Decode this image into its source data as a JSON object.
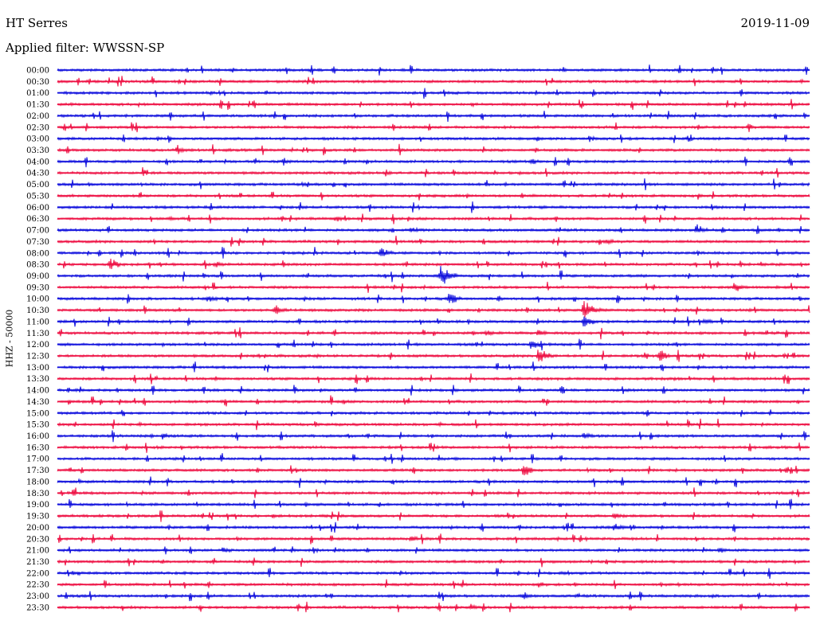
{
  "header": {
    "station": "HT Serres",
    "date": "2019-11-09",
    "filter": "Applied filter: WWSSN-SP"
  },
  "colors": {
    "blue": "#1010dd",
    "red": "#ee1144"
  },
  "chart_data": {
    "type": "line",
    "chart_kind": "helicorder",
    "ylabel": "HHZ - 50000",
    "row_labels": [
      "00:00",
      "00:30",
      "01:00",
      "01:30",
      "02:00",
      "02:30",
      "03:00",
      "03:30",
      "04:00",
      "04:30",
      "05:00",
      "05:30",
      "06:00",
      "06:30",
      "07:00",
      "07:30",
      "08:00",
      "08:30",
      "09:00",
      "09:30",
      "10:00",
      "10:30",
      "11:00",
      "11:30",
      "12:00",
      "12:30",
      "13:00",
      "13:30",
      "14:00",
      "14:30",
      "15:00",
      "15:30",
      "16:00",
      "16:30",
      "17:00",
      "17:30",
      "18:00",
      "18:30",
      "19:00",
      "19:30",
      "20:00",
      "20:30",
      "21:00",
      "21:30",
      "22:00",
      "22:30",
      "23:00",
      "23:30"
    ],
    "row_colors": [
      "blue",
      "red"
    ],
    "events": [
      {
        "row": "03:30",
        "t": 0.16,
        "amp": 7
      },
      {
        "row": "04:00",
        "t": 0.3,
        "amp": 5
      },
      {
        "row": "04:00",
        "t": 0.63,
        "amp": 5
      },
      {
        "row": "06:30",
        "t": 0.37,
        "amp": 6
      },
      {
        "row": "07:00",
        "t": 0.47,
        "amp": 5
      },
      {
        "row": "07:00",
        "t": 0.85,
        "amp": 9
      },
      {
        "row": "07:30",
        "t": 0.73,
        "amp": 5
      },
      {
        "row": "08:00",
        "t": 0.43,
        "amp": 10
      },
      {
        "row": "08:30",
        "t": 0.07,
        "amp": 10
      },
      {
        "row": "08:30",
        "t": 0.21,
        "amp": 5
      },
      {
        "row": "09:00",
        "t": 0.51,
        "amp": 20
      },
      {
        "row": "09:30",
        "t": 0.9,
        "amp": 8
      },
      {
        "row": "10:00",
        "t": 0.2,
        "amp": 7
      },
      {
        "row": "10:00",
        "t": 0.52,
        "amp": 10
      },
      {
        "row": "10:30",
        "t": 0.29,
        "amp": 8
      },
      {
        "row": "10:30",
        "t": 0.7,
        "amp": 18
      },
      {
        "row": "11:00",
        "t": 0.7,
        "amp": 10
      },
      {
        "row": "11:00",
        "t": 0.86,
        "amp": 6
      },
      {
        "row": "11:30",
        "t": 0.57,
        "amp": 6
      },
      {
        "row": "11:30",
        "t": 0.64,
        "amp": 6
      },
      {
        "row": "12:00",
        "t": 0.63,
        "amp": 8
      },
      {
        "row": "12:30",
        "t": 0.64,
        "amp": 14
      },
      {
        "row": "12:30",
        "t": 0.8,
        "amp": 10
      },
      {
        "row": "16:00",
        "t": 0.14,
        "amp": 6
      },
      {
        "row": "16:00",
        "t": 0.7,
        "amp": 6
      },
      {
        "row": "17:30",
        "t": 0.62,
        "amp": 10
      },
      {
        "row": "19:30",
        "t": 0.74,
        "amp": 7
      },
      {
        "row": "20:00",
        "t": 0.74,
        "amp": 8
      },
      {
        "row": "20:30",
        "t": 0.47,
        "amp": 5
      },
      {
        "row": "21:00",
        "t": 0.22,
        "amp": 5
      },
      {
        "row": "21:00",
        "t": 0.34,
        "amp": 5
      },
      {
        "row": "21:00",
        "t": 0.88,
        "amp": 5
      },
      {
        "row": "22:30",
        "t": 0.64,
        "amp": 5
      },
      {
        "row": "23:00",
        "t": 0.62,
        "amp": 6
      },
      {
        "row": "23:30",
        "t": 0.55,
        "amp": 5
      }
    ]
  }
}
